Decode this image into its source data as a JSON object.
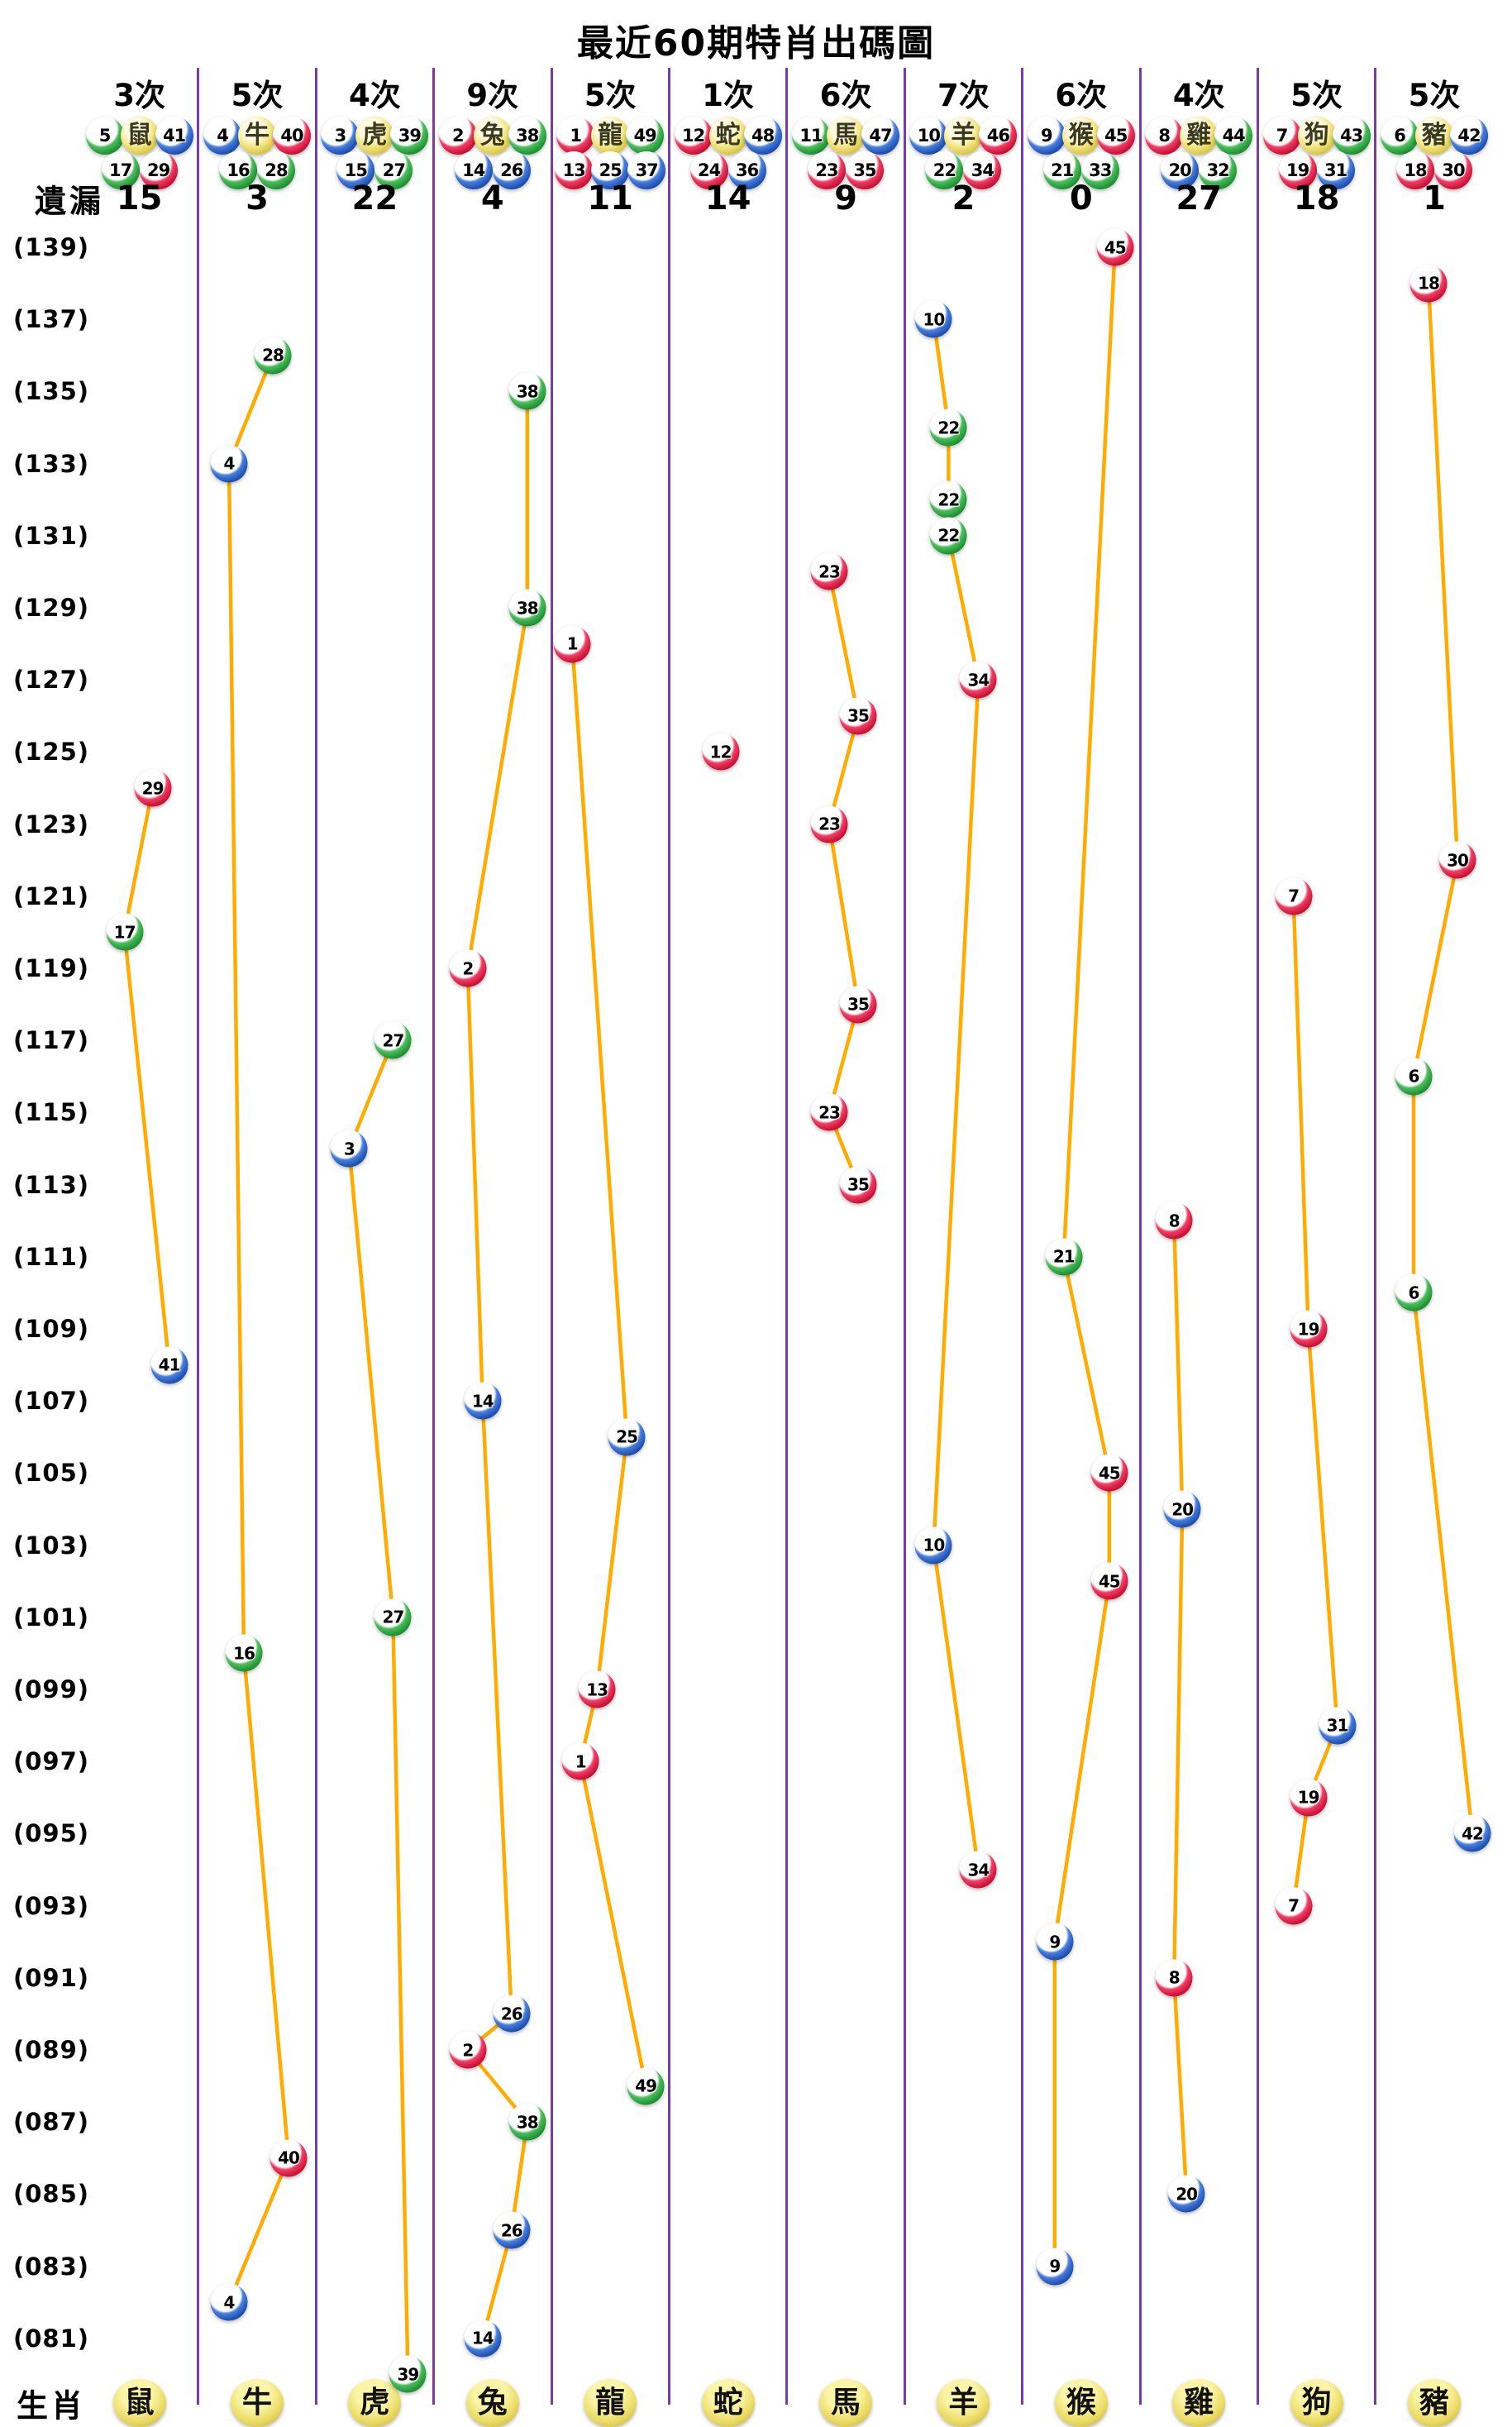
{
  "title": "最近60期特肖出碼圖",
  "labels": {
    "missing_row": "遺漏",
    "zodiac_row": "生肖",
    "times_suffix": "次"
  },
  "colors": {
    "trend_line": "#FFAB00",
    "separator": "#7B3BA6",
    "ball_red": "#CF1238",
    "ball_blue": "#1F52B5",
    "ball_green": "#1E9634",
    "zodiac_yellow": "#E8DA62",
    "text": "#000000"
  },
  "axis": {
    "row_top": 139,
    "row_bottom": 80,
    "tick_labels": [
      "(139)",
      "(137)",
      "(135)",
      "(133)",
      "(131)",
      "(129)",
      "(127)",
      "(125)",
      "(123)",
      "(121)",
      "(119)",
      "(117)",
      "(115)",
      "(113)",
      "(111)",
      "(109)",
      "(107)",
      "(105)",
      "(103)",
      "(101)",
      "(099)",
      "(097)",
      "(095)",
      "(093)",
      "(091)",
      "(089)",
      "(087)",
      "(085)",
      "(083)",
      "(081)"
    ]
  },
  "chart_data": {
    "type": "scatter",
    "title": "最近60期特肖出碼圖",
    "x_categories": [
      "鼠",
      "牛",
      "虎",
      "兔",
      "龍",
      "蛇",
      "馬",
      "羊",
      "猴",
      "雞",
      "狗",
      "豬"
    ],
    "y_range": [
      80,
      139
    ],
    "grid": "vertical-separators-only",
    "number_colors": {
      "red": [
        1,
        2,
        7,
        8,
        12,
        13,
        18,
        19,
        23,
        24,
        29,
        30,
        34,
        35,
        40,
        45,
        46
      ],
      "blue": [
        3,
        4,
        9,
        10,
        14,
        15,
        20,
        25,
        26,
        31,
        36,
        37,
        41,
        42,
        47,
        48
      ],
      "green": [
        5,
        6,
        11,
        16,
        17,
        21,
        22,
        27,
        28,
        32,
        33,
        38,
        39,
        43,
        44,
        49
      ]
    },
    "columns": [
      {
        "zodiac": "鼠",
        "count": 3,
        "count_label": "3次",
        "missing": 15,
        "header_top": [
          5,
          41
        ],
        "header_bottom": [
          17,
          29
        ],
        "points": [
          {
            "n": 29,
            "row": 124,
            "dx": 16
          },
          {
            "n": 17,
            "row": 120,
            "dx": -18
          },
          {
            "n": 41,
            "row": 108,
            "dx": 36
          }
        ]
      },
      {
        "zodiac": "牛",
        "count": 5,
        "count_label": "5次",
        "missing": 3,
        "header_top": [
          4,
          40
        ],
        "header_bottom": [
          16,
          28
        ],
        "points": [
          {
            "n": 28,
            "row": 136,
            "dx": 19
          },
          {
            "n": 4,
            "row": 133,
            "dx": -34
          },
          {
            "n": 16,
            "row": 100,
            "dx": -16
          },
          {
            "n": 40,
            "row": 86,
            "dx": 38
          },
          {
            "n": 4,
            "row": 82,
            "dx": -34
          }
        ]
      },
      {
        "zodiac": "虎",
        "count": 4,
        "count_label": "4次",
        "missing": 22,
        "header_top": [
          3,
          39
        ],
        "header_bottom": [
          15,
          27
        ],
        "points": [
          {
            "n": 27,
            "row": 117,
            "dx": 22
          },
          {
            "n": 3,
            "row": 114,
            "dx": -31
          },
          {
            "n": 27,
            "row": 101,
            "dx": 22
          },
          {
            "n": 39,
            "row": 80,
            "dx": 40
          }
        ]
      },
      {
        "zodiac": "兔",
        "count": 9,
        "count_label": "9次",
        "missing": 4,
        "header_top": [
          2,
          38
        ],
        "header_bottom": [
          14,
          26
        ],
        "points": [
          {
            "n": 38,
            "row": 135,
            "dx": 42
          },
          {
            "n": 38,
            "row": 129,
            "dx": 42
          },
          {
            "n": 2,
            "row": 119,
            "dx": -30
          },
          {
            "n": 14,
            "row": 107,
            "dx": -12
          },
          {
            "n": 26,
            "row": 90,
            "dx": 23
          },
          {
            "n": 2,
            "row": 89,
            "dx": -30
          },
          {
            "n": 38,
            "row": 87,
            "dx": 42
          },
          {
            "n": 26,
            "row": 84,
            "dx": 23
          },
          {
            "n": 14,
            "row": 81,
            "dx": -12
          }
        ]
      },
      {
        "zodiac": "龍",
        "count": 5,
        "count_label": "5次",
        "missing": 11,
        "header_top": [
          1,
          49
        ],
        "header_bottom": [
          13,
          25,
          37
        ],
        "points": [
          {
            "n": 1,
            "row": 128,
            "dx": -46
          },
          {
            "n": 25,
            "row": 106,
            "dx": 20
          },
          {
            "n": 13,
            "row": 99,
            "dx": -16
          },
          {
            "n": 1,
            "row": 97,
            "dx": -36
          },
          {
            "n": 49,
            "row": 88,
            "dx": 43
          }
        ]
      },
      {
        "zodiac": "蛇",
        "count": 1,
        "count_label": "1次",
        "missing": 14,
        "header_top": [
          12,
          48
        ],
        "header_bottom": [
          24,
          36
        ],
        "points": [
          {
            "n": 12,
            "row": 125,
            "dx": -9
          }
        ]
      },
      {
        "zodiac": "馬",
        "count": 6,
        "count_label": "6次",
        "missing": 9,
        "header_top": [
          11,
          47
        ],
        "header_bottom": [
          23,
          35
        ],
        "points": [
          {
            "n": 23,
            "row": 130,
            "dx": -20
          },
          {
            "n": 35,
            "row": 126,
            "dx": 15
          },
          {
            "n": 23,
            "row": 123,
            "dx": -20
          },
          {
            "n": 35,
            "row": 118,
            "dx": 15
          },
          {
            "n": 23,
            "row": 115,
            "dx": -20
          },
          {
            "n": 35,
            "row": 113,
            "dx": 15
          }
        ]
      },
      {
        "zodiac": "羊",
        "count": 7,
        "count_label": "7次",
        "missing": 2,
        "header_top": [
          10,
          46
        ],
        "header_bottom": [
          22,
          34
        ],
        "points": [
          {
            "n": 10,
            "row": 137,
            "dx": -36
          },
          {
            "n": 22,
            "row": 134,
            "dx": -18
          },
          {
            "n": 22,
            "row": 132,
            "dx": -18
          },
          {
            "n": 22,
            "row": 131,
            "dx": -18
          },
          {
            "n": 34,
            "row": 127,
            "dx": 18
          },
          {
            "n": 10,
            "row": 103,
            "dx": -36
          },
          {
            "n": 34,
            "row": 94,
            "dx": 18
          }
        ]
      },
      {
        "zodiac": "猴",
        "count": 6,
        "count_label": "6次",
        "missing": 0,
        "header_top": [
          9,
          45
        ],
        "header_bottom": [
          21,
          33
        ],
        "points": [
          {
            "n": 45,
            "row": 139,
            "dx": 41
          },
          {
            "n": 21,
            "row": 111,
            "dx": -21
          },
          {
            "n": 45,
            "row": 105,
            "dx": 34
          },
          {
            "n": 45,
            "row": 102,
            "dx": 34
          },
          {
            "n": 9,
            "row": 92,
            "dx": -32
          },
          {
            "n": 9,
            "row": 83,
            "dx": -32
          }
        ]
      },
      {
        "zodiac": "雞",
        "count": 4,
        "count_label": "4次",
        "missing": 27,
        "header_top": [
          8,
          44
        ],
        "header_bottom": [
          20,
          32
        ],
        "points": [
          {
            "n": 8,
            "row": 112,
            "dx": -30
          },
          {
            "n": 20,
            "row": 104,
            "dx": -20
          },
          {
            "n": 8,
            "row": 91,
            "dx": -30
          },
          {
            "n": 20,
            "row": 85,
            "dx": -15
          }
        ]
      },
      {
        "zodiac": "狗",
        "count": 5,
        "count_label": "5次",
        "missing": 18,
        "header_top": [
          7,
          43
        ],
        "header_bottom": [
          19,
          31
        ],
        "points": [
          {
            "n": 7,
            "row": 121,
            "dx": -28
          },
          {
            "n": 19,
            "row": 109,
            "dx": -10
          },
          {
            "n": 31,
            "row": 98,
            "dx": 25
          },
          {
            "n": 19,
            "row": 96,
            "dx": -10
          },
          {
            "n": 7,
            "row": 93,
            "dx": -28
          }
        ]
      },
      {
        "zodiac": "豬",
        "count": 5,
        "count_label": "5次",
        "missing": 1,
        "header_top": [
          6,
          42
        ],
        "header_bottom": [
          18,
          30
        ],
        "points": [
          {
            "n": 18,
            "row": 138,
            "dx": -7
          },
          {
            "n": 30,
            "row": 122,
            "dx": 28
          },
          {
            "n": 6,
            "row": 116,
            "dx": -25
          },
          {
            "n": 6,
            "row": 110,
            "dx": -25
          },
          {
            "n": 42,
            "row": 95,
            "dx": 46
          }
        ]
      }
    ]
  }
}
